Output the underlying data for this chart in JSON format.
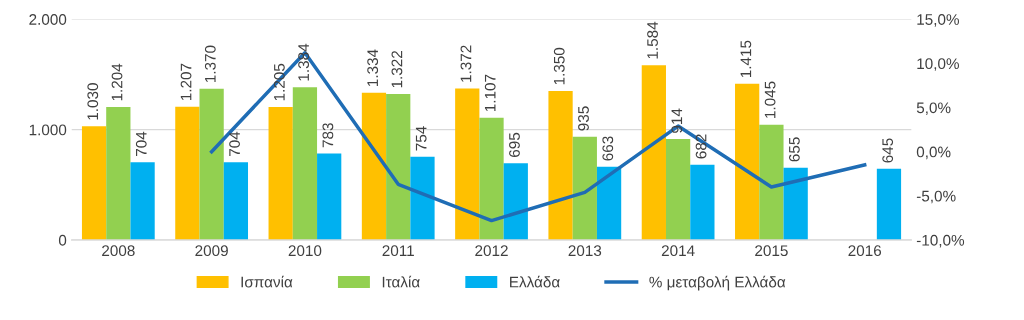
{
  "chart_data": {
    "type": "bar",
    "categories": [
      "2008",
      "2009",
      "2010",
      "2011",
      "2012",
      "2013",
      "2014",
      "2015",
      "2016"
    ],
    "series": [
      {
        "name": "Ισπανία",
        "color": "#ffc000",
        "values": [
          1030,
          1207,
          1205,
          1334,
          1372,
          1350,
          1584,
          1415,
          null
        ],
        "value_labels": [
          "1.030",
          "1.207",
          "1.205",
          "1.334",
          "1.372",
          "1.350",
          "1.584",
          "1.415",
          null
        ]
      },
      {
        "name": "Ιταλία",
        "color": "#92d050",
        "values": [
          1204,
          1370,
          1384,
          1322,
          1107,
          935,
          914,
          1045,
          null
        ],
        "value_labels": [
          "1.204",
          "1.370",
          "1.384",
          "1.322",
          "1.107",
          "935",
          "914",
          "1.045",
          null
        ]
      },
      {
        "name": "Ελλάδα",
        "color": "#00b0f0",
        "values": [
          704,
          704,
          783,
          754,
          695,
          663,
          682,
          655,
          645
        ],
        "value_labels": [
          "704",
          "704",
          "783",
          "754",
          "695",
          "663",
          "682",
          "655",
          "645"
        ]
      },
      {
        "name": "% μεταβολή Ελλάδα",
        "color": "#1f6db5",
        "type": "line",
        "axis": "y2",
        "values": [
          null,
          0.0,
          11.2,
          -3.7,
          -7.8,
          -4.6,
          2.9,
          -4.0,
          -1.5
        ]
      }
    ],
    "ylim": [
      0,
      2000
    ],
    "yticks": [
      0,
      {
        "value": 1000,
        "label": "1.000"
      },
      {
        "value": 2000,
        "label": "2.000"
      }
    ],
    "y2lim": [
      -10,
      15
    ],
    "y2ticks": [
      {
        "value": -10,
        "label": "-10,0%"
      },
      {
        "value": -5,
        "label": "-5,0%"
      },
      {
        "value": 0,
        "label": "0,0%"
      },
      {
        "value": 5,
        "label": "5,0%"
      },
      {
        "value": 10,
        "label": "10,0%"
      },
      {
        "value": 15,
        "label": "15,0%"
      }
    ],
    "grid": "y",
    "legend": "bottom",
    "marker": "none",
    "line_style": "solid"
  }
}
